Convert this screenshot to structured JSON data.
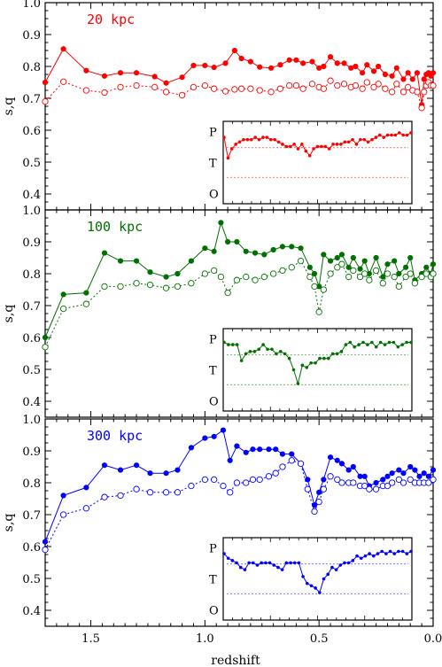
{
  "chart_data": [
    {
      "type": "line",
      "title": "20 kpc",
      "color": "#ff0000",
      "ylabel": "s,q",
      "xlabel": "redshift",
      "xlim": [
        1.7,
        0.0
      ],
      "ylim": [
        0.35,
        1.0
      ],
      "yticks": [
        "0.4",
        "0.5",
        "0.6",
        "0.7",
        "0.8",
        "0.9",
        "1.0"
      ],
      "series": [
        {
          "style": "solid",
          "marker": "filled-circle",
          "x": [
            1.7,
            1.62,
            1.52,
            1.44,
            1.37,
            1.3,
            1.22,
            1.17,
            1.1,
            1.05,
            1.0,
            0.96,
            0.91,
            0.87,
            0.84,
            0.8,
            0.76,
            0.71,
            0.67,
            0.63,
            0.6,
            0.57,
            0.53,
            0.5,
            0.48,
            0.45,
            0.42,
            0.39,
            0.36,
            0.34,
            0.31,
            0.29,
            0.26,
            0.24,
            0.21,
            0.18,
            0.16,
            0.13,
            0.11,
            0.09,
            0.07,
            0.05,
            0.04,
            0.03,
            0.02,
            0.01,
            0.0
          ],
          "y": [
            0.75,
            0.855,
            0.787,
            0.77,
            0.78,
            0.78,
            0.768,
            0.748,
            0.766,
            0.803,
            0.803,
            0.797,
            0.81,
            0.85,
            0.825,
            0.815,
            0.798,
            0.795,
            0.805,
            0.82,
            0.82,
            0.81,
            0.815,
            0.795,
            0.8,
            0.83,
            0.81,
            0.81,
            0.795,
            0.8,
            0.78,
            0.805,
            0.785,
            0.8,
            0.775,
            0.77,
            0.795,
            0.76,
            0.78,
            0.76,
            0.78,
            0.68,
            0.76,
            0.775,
            0.78,
            0.77,
            0.78
          ]
        },
        {
          "style": "dotted",
          "marker": "open-circle",
          "x": [
            1.7,
            1.62,
            1.52,
            1.44,
            1.37,
            1.3,
            1.22,
            1.17,
            1.1,
            1.05,
            1.0,
            0.96,
            0.91,
            0.87,
            0.84,
            0.8,
            0.76,
            0.71,
            0.67,
            0.63,
            0.6,
            0.57,
            0.53,
            0.5,
            0.48,
            0.45,
            0.42,
            0.39,
            0.36,
            0.34,
            0.31,
            0.29,
            0.26,
            0.24,
            0.21,
            0.18,
            0.16,
            0.13,
            0.11,
            0.09,
            0.07,
            0.05,
            0.04,
            0.03,
            0.02,
            0.01,
            0.0
          ],
          "y": [
            0.69,
            0.752,
            0.725,
            0.718,
            0.735,
            0.74,
            0.735,
            0.72,
            0.71,
            0.735,
            0.74,
            0.73,
            0.722,
            0.728,
            0.73,
            0.73,
            0.725,
            0.72,
            0.73,
            0.74,
            0.74,
            0.73,
            0.745,
            0.735,
            0.73,
            0.755,
            0.74,
            0.745,
            0.735,
            0.74,
            0.73,
            0.75,
            0.735,
            0.745,
            0.73,
            0.72,
            0.745,
            0.72,
            0.735,
            0.725,
            0.72,
            0.67,
            0.72,
            0.74,
            0.75,
            0.74,
            0.74
          ]
        }
      ],
      "inset": {
        "ylabels": [
          "P",
          "T",
          "O"
        ],
        "values": [
          0.61,
          0.52,
          0.56,
          0.58,
          0.59,
          0.6,
          0.6,
          0.6,
          0.61,
          0.6,
          0.61,
          0.61,
          0.6,
          0.6,
          0.59,
          0.58,
          0.57,
          0.57,
          0.58,
          0.56,
          0.58,
          0.55,
          0.53,
          0.56,
          0.57,
          0.57,
          0.57,
          0.56,
          0.58,
          0.58,
          0.58,
          0.59,
          0.59,
          0.6,
          0.58,
          0.6,
          0.6,
          0.59,
          0.6,
          0.61,
          0.62,
          0.61,
          0.62,
          0.62,
          0.62,
          0.63,
          0.62,
          0.62,
          0.63
        ]
      }
    },
    {
      "type": "line",
      "title": "100 kpc",
      "color": "#007000",
      "ylabel": "s,q",
      "xlim": [
        1.7,
        0.0
      ],
      "ylim": [
        0.35,
        1.0
      ],
      "yticks": [
        "0.4",
        "0.5",
        "0.6",
        "0.7",
        "0.8",
        "0.9",
        "1.0"
      ],
      "series": [
        {
          "style": "solid",
          "marker": "filled-circle",
          "x": [
            1.7,
            1.62,
            1.52,
            1.44,
            1.37,
            1.3,
            1.24,
            1.17,
            1.12,
            1.06,
            1.0,
            0.96,
            0.93,
            0.9,
            0.86,
            0.82,
            0.78,
            0.74,
            0.7,
            0.66,
            0.62,
            0.58,
            0.54,
            0.52,
            0.5,
            0.48,
            0.45,
            0.42,
            0.4,
            0.37,
            0.35,
            0.32,
            0.3,
            0.28,
            0.25,
            0.22,
            0.2,
            0.17,
            0.15,
            0.12,
            0.1,
            0.08,
            0.05,
            0.03,
            0.01,
            0.0
          ],
          "y": [
            0.6,
            0.735,
            0.74,
            0.865,
            0.84,
            0.84,
            0.805,
            0.79,
            0.8,
            0.84,
            0.88,
            0.87,
            0.96,
            0.9,
            0.9,
            0.87,
            0.865,
            0.86,
            0.875,
            0.885,
            0.885,
            0.88,
            0.82,
            0.8,
            0.76,
            0.86,
            0.84,
            0.85,
            0.86,
            0.82,
            0.85,
            0.815,
            0.84,
            0.8,
            0.85,
            0.79,
            0.83,
            0.84,
            0.8,
            0.82,
            0.85,
            0.78,
            0.8,
            0.82,
            0.8,
            0.83
          ]
        },
        {
          "style": "dotted",
          "marker": "open-circle",
          "x": [
            1.7,
            1.62,
            1.52,
            1.44,
            1.37,
            1.3,
            1.24,
            1.17,
            1.12,
            1.06,
            1.0,
            0.96,
            0.93,
            0.9,
            0.86,
            0.82,
            0.78,
            0.74,
            0.7,
            0.66,
            0.62,
            0.58,
            0.54,
            0.52,
            0.5,
            0.48,
            0.45,
            0.42,
            0.4,
            0.37,
            0.35,
            0.32,
            0.3,
            0.28,
            0.25,
            0.22,
            0.2,
            0.17,
            0.15,
            0.12,
            0.1,
            0.08,
            0.05,
            0.03,
            0.01,
            0.0
          ],
          "y": [
            0.57,
            0.69,
            0.705,
            0.76,
            0.76,
            0.77,
            0.765,
            0.755,
            0.76,
            0.77,
            0.8,
            0.81,
            0.79,
            0.74,
            0.78,
            0.79,
            0.78,
            0.79,
            0.8,
            0.81,
            0.82,
            0.84,
            0.79,
            0.76,
            0.68,
            0.75,
            0.8,
            0.82,
            0.83,
            0.79,
            0.81,
            0.79,
            0.8,
            0.78,
            0.81,
            0.77,
            0.8,
            0.79,
            0.76,
            0.79,
            0.8,
            0.77,
            0.79,
            0.8,
            0.79,
            0.8
          ]
        }
      ],
      "inset": {
        "ylabels": [
          "P",
          "T",
          "O"
        ],
        "values": [
          0.62,
          0.61,
          0.61,
          0.61,
          0.54,
          0.57,
          0.58,
          0.58,
          0.59,
          0.61,
          0.59,
          0.59,
          0.57,
          0.58,
          0.57,
          0.55,
          0.5,
          0.44,
          0.52,
          0.51,
          0.53,
          0.53,
          0.55,
          0.55,
          0.55,
          0.57,
          0.57,
          0.58,
          0.61,
          0.62,
          0.6,
          0.61,
          0.62,
          0.61,
          0.62,
          0.6,
          0.62,
          0.61,
          0.62,
          0.62,
          0.6,
          0.61,
          0.62,
          0.62
        ]
      }
    },
    {
      "type": "line",
      "title": "300 kpc",
      "color": "#0000ff",
      "ylabel": "s,q",
      "xlabel": "redshift",
      "xlim": [
        1.7,
        0.0
      ],
      "ylim": [
        0.35,
        1.0
      ],
      "yticks": [
        "0.4",
        "0.5",
        "0.6",
        "0.7",
        "0.8",
        "0.9",
        "1.0"
      ],
      "xticks": [
        "1.5",
        "1.0",
        "0.5",
        "0.0"
      ],
      "series": [
        {
          "style": "solid",
          "marker": "filled-circle",
          "x": [
            1.7,
            1.62,
            1.52,
            1.44,
            1.37,
            1.3,
            1.24,
            1.17,
            1.12,
            1.06,
            1.0,
            0.96,
            0.92,
            0.89,
            0.86,
            0.82,
            0.79,
            0.76,
            0.72,
            0.69,
            0.66,
            0.62,
            0.58,
            0.55,
            0.52,
            0.5,
            0.48,
            0.45,
            0.42,
            0.4,
            0.37,
            0.35,
            0.32,
            0.3,
            0.28,
            0.25,
            0.22,
            0.2,
            0.18,
            0.15,
            0.13,
            0.1,
            0.08,
            0.06,
            0.04,
            0.02,
            0.0
          ],
          "y": [
            0.615,
            0.76,
            0.785,
            0.855,
            0.84,
            0.855,
            0.83,
            0.83,
            0.84,
            0.91,
            0.94,
            0.945,
            0.965,
            0.87,
            0.915,
            0.895,
            0.905,
            0.905,
            0.905,
            0.905,
            0.89,
            0.89,
            0.86,
            0.81,
            0.73,
            0.77,
            0.81,
            0.88,
            0.87,
            0.86,
            0.84,
            0.85,
            0.82,
            0.82,
            0.79,
            0.8,
            0.81,
            0.82,
            0.83,
            0.84,
            0.83,
            0.85,
            0.84,
            0.82,
            0.83,
            0.82,
            0.84
          ]
        },
        {
          "style": "dotted",
          "marker": "open-circle",
          "x": [
            1.7,
            1.62,
            1.52,
            1.44,
            1.37,
            1.3,
            1.24,
            1.17,
            1.12,
            1.06,
            1.0,
            0.96,
            0.92,
            0.89,
            0.86,
            0.82,
            0.79,
            0.76,
            0.72,
            0.69,
            0.66,
            0.62,
            0.58,
            0.55,
            0.52,
            0.5,
            0.48,
            0.45,
            0.42,
            0.4,
            0.37,
            0.35,
            0.32,
            0.3,
            0.28,
            0.25,
            0.22,
            0.2,
            0.18,
            0.15,
            0.13,
            0.1,
            0.08,
            0.06,
            0.04,
            0.02,
            0.0
          ],
          "y": [
            0.59,
            0.7,
            0.72,
            0.755,
            0.76,
            0.78,
            0.77,
            0.77,
            0.77,
            0.79,
            0.81,
            0.81,
            0.79,
            0.77,
            0.8,
            0.8,
            0.81,
            0.81,
            0.82,
            0.83,
            0.85,
            0.87,
            0.86,
            0.78,
            0.71,
            0.74,
            0.78,
            0.82,
            0.81,
            0.8,
            0.8,
            0.8,
            0.79,
            0.79,
            0.78,
            0.78,
            0.79,
            0.79,
            0.8,
            0.81,
            0.8,
            0.81,
            0.8,
            0.8,
            0.8,
            0.8,
            0.81
          ]
        }
      ],
      "inset": {
        "ylabels": [
          "P",
          "T",
          "O"
        ],
        "values": [
          0.61,
          0.59,
          0.58,
          0.57,
          0.55,
          0.54,
          0.57,
          0.57,
          0.56,
          0.57,
          0.57,
          0.57,
          0.56,
          0.55,
          0.54,
          0.57,
          0.57,
          0.57,
          0.57,
          0.51,
          0.48,
          0.47,
          0.46,
          0.44,
          0.5,
          0.52,
          0.55,
          0.54,
          0.56,
          0.57,
          0.57,
          0.58,
          0.6,
          0.59,
          0.6,
          0.61,
          0.6,
          0.61,
          0.62,
          0.61,
          0.62,
          0.61,
          0.62,
          0.62,
          0.61,
          0.62
        ]
      }
    }
  ]
}
